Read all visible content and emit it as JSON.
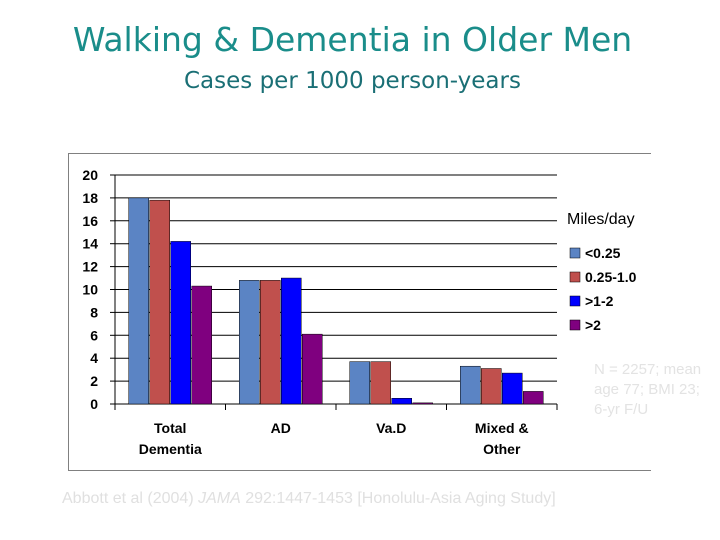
{
  "slide": {
    "title": "Walking & Dementia in Older Men",
    "subtitle": "Cases per 1000 person-years",
    "note": "N = 2257; mean age 77; BMI 23; 6-yr F/U",
    "citation_pre": "Abbott et al (2004) ",
    "citation_journal": "JAMA",
    "citation_post": " 292:1447-1453 [Honolulu-Asia Aging Study]"
  },
  "chart_data": {
    "type": "bar",
    "categories": [
      [
        "Total",
        "Dementia"
      ],
      [
        "AD"
      ],
      [
        "Va.D"
      ],
      [
        "Mixed &",
        "Other"
      ]
    ],
    "series": [
      {
        "name": "<0.25",
        "values": [
          18.0,
          10.8,
          3.7,
          3.3
        ],
        "color": "#5b84c4"
      },
      {
        "name": "0.25-1.0",
        "values": [
          17.8,
          10.8,
          3.7,
          3.1
        ],
        "color": "#c0504d"
      },
      {
        "name": ">1-2",
        "values": [
          14.2,
          11.0,
          0.5,
          2.7
        ],
        "color": "#0000ff"
      },
      {
        "name": ">2",
        "values": [
          10.3,
          6.1,
          0.1,
          1.1
        ],
        "color": "#7f007f"
      }
    ],
    "legend_title": "Miles/day",
    "legend_position": "right",
    "ylim": [
      0,
      20
    ],
    "yticks": [
      0,
      2,
      4,
      6,
      8,
      10,
      12,
      14,
      16,
      18,
      20
    ],
    "grid": true
  }
}
